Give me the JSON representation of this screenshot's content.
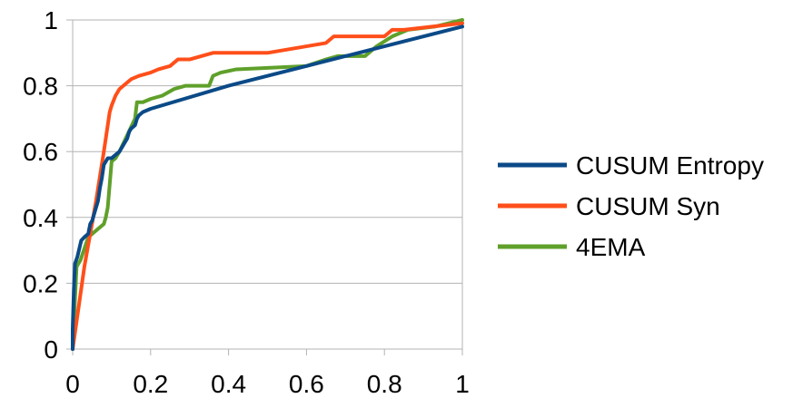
{
  "chart_data": {
    "type": "line",
    "title": "",
    "xlabel": "",
    "ylabel": "",
    "xlim": [
      0,
      1
    ],
    "ylim": [
      0,
      1
    ],
    "x_ticks": [
      "0",
      "0.2",
      "0.4",
      "0.6",
      "0.8",
      "1"
    ],
    "y_ticks": [
      "0",
      "0.2",
      "0.4",
      "0.6",
      "0.8",
      "1"
    ],
    "grid": "horizontal",
    "legend_position": "right",
    "series": [
      {
        "name": "CUSUM Entropy",
        "color": "#0b4a87",
        "points": [
          [
            0.0,
            0.0
          ],
          [
            0.0,
            0.06
          ],
          [
            0.003,
            0.18
          ],
          [
            0.006,
            0.26
          ],
          [
            0.012,
            0.28
          ],
          [
            0.018,
            0.31
          ],
          [
            0.022,
            0.33
          ],
          [
            0.03,
            0.34
          ],
          [
            0.04,
            0.35
          ],
          [
            0.045,
            0.38
          ],
          [
            0.05,
            0.39
          ],
          [
            0.055,
            0.41
          ],
          [
            0.06,
            0.43
          ],
          [
            0.065,
            0.45
          ],
          [
            0.07,
            0.49
          ],
          [
            0.075,
            0.52
          ],
          [
            0.08,
            0.56
          ],
          [
            0.085,
            0.57
          ],
          [
            0.09,
            0.58
          ],
          [
            0.1,
            0.58
          ],
          [
            0.11,
            0.59
          ],
          [
            0.12,
            0.6
          ],
          [
            0.13,
            0.62
          ],
          [
            0.14,
            0.64
          ],
          [
            0.145,
            0.66
          ],
          [
            0.15,
            0.67
          ],
          [
            0.16,
            0.68
          ],
          [
            0.165,
            0.7
          ],
          [
            0.17,
            0.71
          ],
          [
            0.18,
            0.72
          ],
          [
            0.2,
            0.73
          ],
          [
            0.4,
            0.8
          ],
          [
            0.6,
            0.86
          ],
          [
            0.8,
            0.92
          ],
          [
            1.0,
            0.98
          ]
        ]
      },
      {
        "name": "CUSUM Syn",
        "color": "#ff4f1a",
        "points": [
          [
            0.0,
            0.0
          ],
          [
            0.03,
            0.25
          ],
          [
            0.06,
            0.45
          ],
          [
            0.08,
            0.6
          ],
          [
            0.09,
            0.68
          ],
          [
            0.095,
            0.72
          ],
          [
            0.1,
            0.74
          ],
          [
            0.11,
            0.77
          ],
          [
            0.12,
            0.79
          ],
          [
            0.13,
            0.8
          ],
          [
            0.15,
            0.82
          ],
          [
            0.17,
            0.83
          ],
          [
            0.2,
            0.84
          ],
          [
            0.22,
            0.85
          ],
          [
            0.25,
            0.86
          ],
          [
            0.26,
            0.87
          ],
          [
            0.27,
            0.88
          ],
          [
            0.3,
            0.88
          ],
          [
            0.33,
            0.89
          ],
          [
            0.36,
            0.9
          ],
          [
            0.4,
            0.9
          ],
          [
            0.5,
            0.9
          ],
          [
            0.55,
            0.91
          ],
          [
            0.6,
            0.92
          ],
          [
            0.65,
            0.93
          ],
          [
            0.66,
            0.94
          ],
          [
            0.67,
            0.95
          ],
          [
            0.8,
            0.95
          ],
          [
            0.82,
            0.97
          ],
          [
            0.85,
            0.97
          ],
          [
            1.0,
            0.99
          ]
        ]
      },
      {
        "name": "4EMA",
        "color": "#5fa02b",
        "points": [
          [
            0.0,
            0.0
          ],
          [
            0.01,
            0.25
          ],
          [
            0.02,
            0.27
          ],
          [
            0.04,
            0.34
          ],
          [
            0.06,
            0.36
          ],
          [
            0.08,
            0.38
          ],
          [
            0.085,
            0.4
          ],
          [
            0.09,
            0.43
          ],
          [
            0.095,
            0.5
          ],
          [
            0.1,
            0.57
          ],
          [
            0.11,
            0.58
          ],
          [
            0.12,
            0.6
          ],
          [
            0.14,
            0.65
          ],
          [
            0.16,
            0.7
          ],
          [
            0.165,
            0.75
          ],
          [
            0.18,
            0.75
          ],
          [
            0.2,
            0.76
          ],
          [
            0.23,
            0.77
          ],
          [
            0.26,
            0.79
          ],
          [
            0.29,
            0.8
          ],
          [
            0.35,
            0.8
          ],
          [
            0.36,
            0.83
          ],
          [
            0.38,
            0.84
          ],
          [
            0.42,
            0.85
          ],
          [
            0.6,
            0.86
          ],
          [
            0.65,
            0.88
          ],
          [
            0.68,
            0.89
          ],
          [
            0.75,
            0.89
          ],
          [
            0.78,
            0.92
          ],
          [
            0.82,
            0.95
          ],
          [
            0.86,
            0.97
          ],
          [
            0.93,
            0.98
          ],
          [
            1.0,
            1.0
          ]
        ]
      }
    ]
  }
}
